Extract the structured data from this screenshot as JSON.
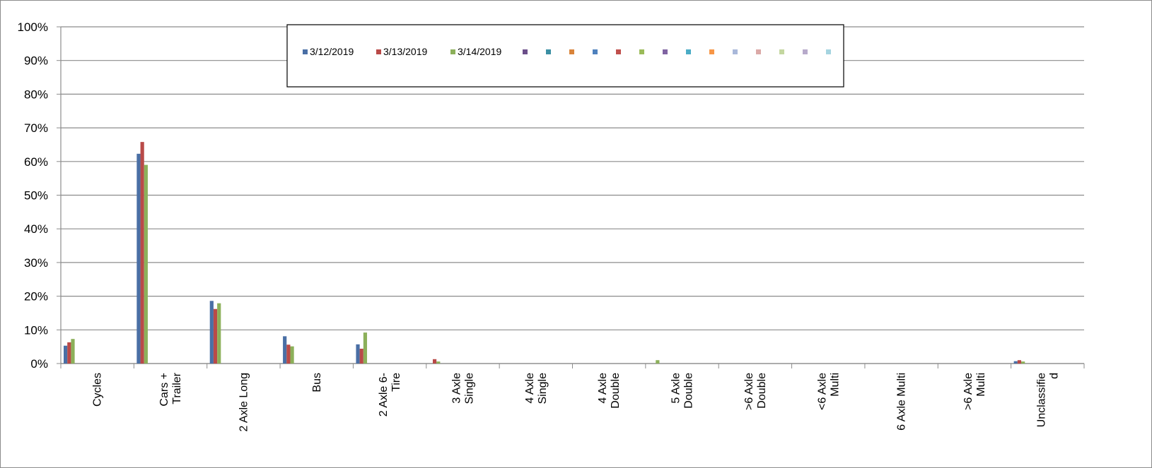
{
  "chart_data": {
    "type": "bar",
    "ylim": [
      0,
      100
    ],
    "yticks": [
      "0%",
      "10%",
      "20%",
      "30%",
      "40%",
      "50%",
      "60%",
      "70%",
      "80%",
      "90%",
      "100%"
    ],
    "grid": true,
    "legend_position": "top-center",
    "categories": [
      [
        "Cycles"
      ],
      [
        "Cars +",
        "Trailer"
      ],
      [
        "2 Axle Long"
      ],
      [
        "Bus"
      ],
      [
        "2 Axle 6-",
        "Tire"
      ],
      [
        "3 Axle",
        "Single"
      ],
      [
        "4 Axle",
        "Single"
      ],
      [
        "4 Axle",
        "Double"
      ],
      [
        "5 Axle",
        "Double"
      ],
      [
        ">6 Axle",
        "Double"
      ],
      [
        "<6 Axle",
        "Multi"
      ],
      [
        "6 Axle Multi"
      ],
      [
        ">6 Axle",
        "Multi"
      ],
      [
        "Unclassifie",
        "d"
      ]
    ],
    "series": [
      {
        "name": "3/12/2019",
        "color": "#4a6fa5",
        "values": [
          5.3,
          62.3,
          18.6,
          8.1,
          5.7,
          0.0,
          0.0,
          0.0,
          0.0,
          0.0,
          0.0,
          0.0,
          0.0,
          0.7
        ]
      },
      {
        "name": "3/13/2019",
        "color": "#b94a48",
        "values": [
          6.3,
          65.8,
          16.2,
          5.6,
          4.4,
          1.3,
          0.0,
          0.0,
          0.0,
          0.0,
          0.0,
          0.0,
          0.0,
          1.0
        ]
      },
      {
        "name": "3/14/2019",
        "color": "#8cb05a",
        "values": [
          7.3,
          59.0,
          17.9,
          5.1,
          9.2,
          0.6,
          0.0,
          0.0,
          1.0,
          0.0,
          0.0,
          0.0,
          0.0,
          0.6
        ]
      }
    ],
    "legend_extra_markers": [
      "#6b4f8a",
      "#3b8fa3",
      "#d9843a",
      "#4f81bd",
      "#c0504d",
      "#9bbb59",
      "#8064a2",
      "#4bacc6",
      "#f79646",
      "#a9b8da",
      "#dba9a7",
      "#c4d7a0",
      "#b7aacb",
      "#a5d4e0"
    ]
  }
}
